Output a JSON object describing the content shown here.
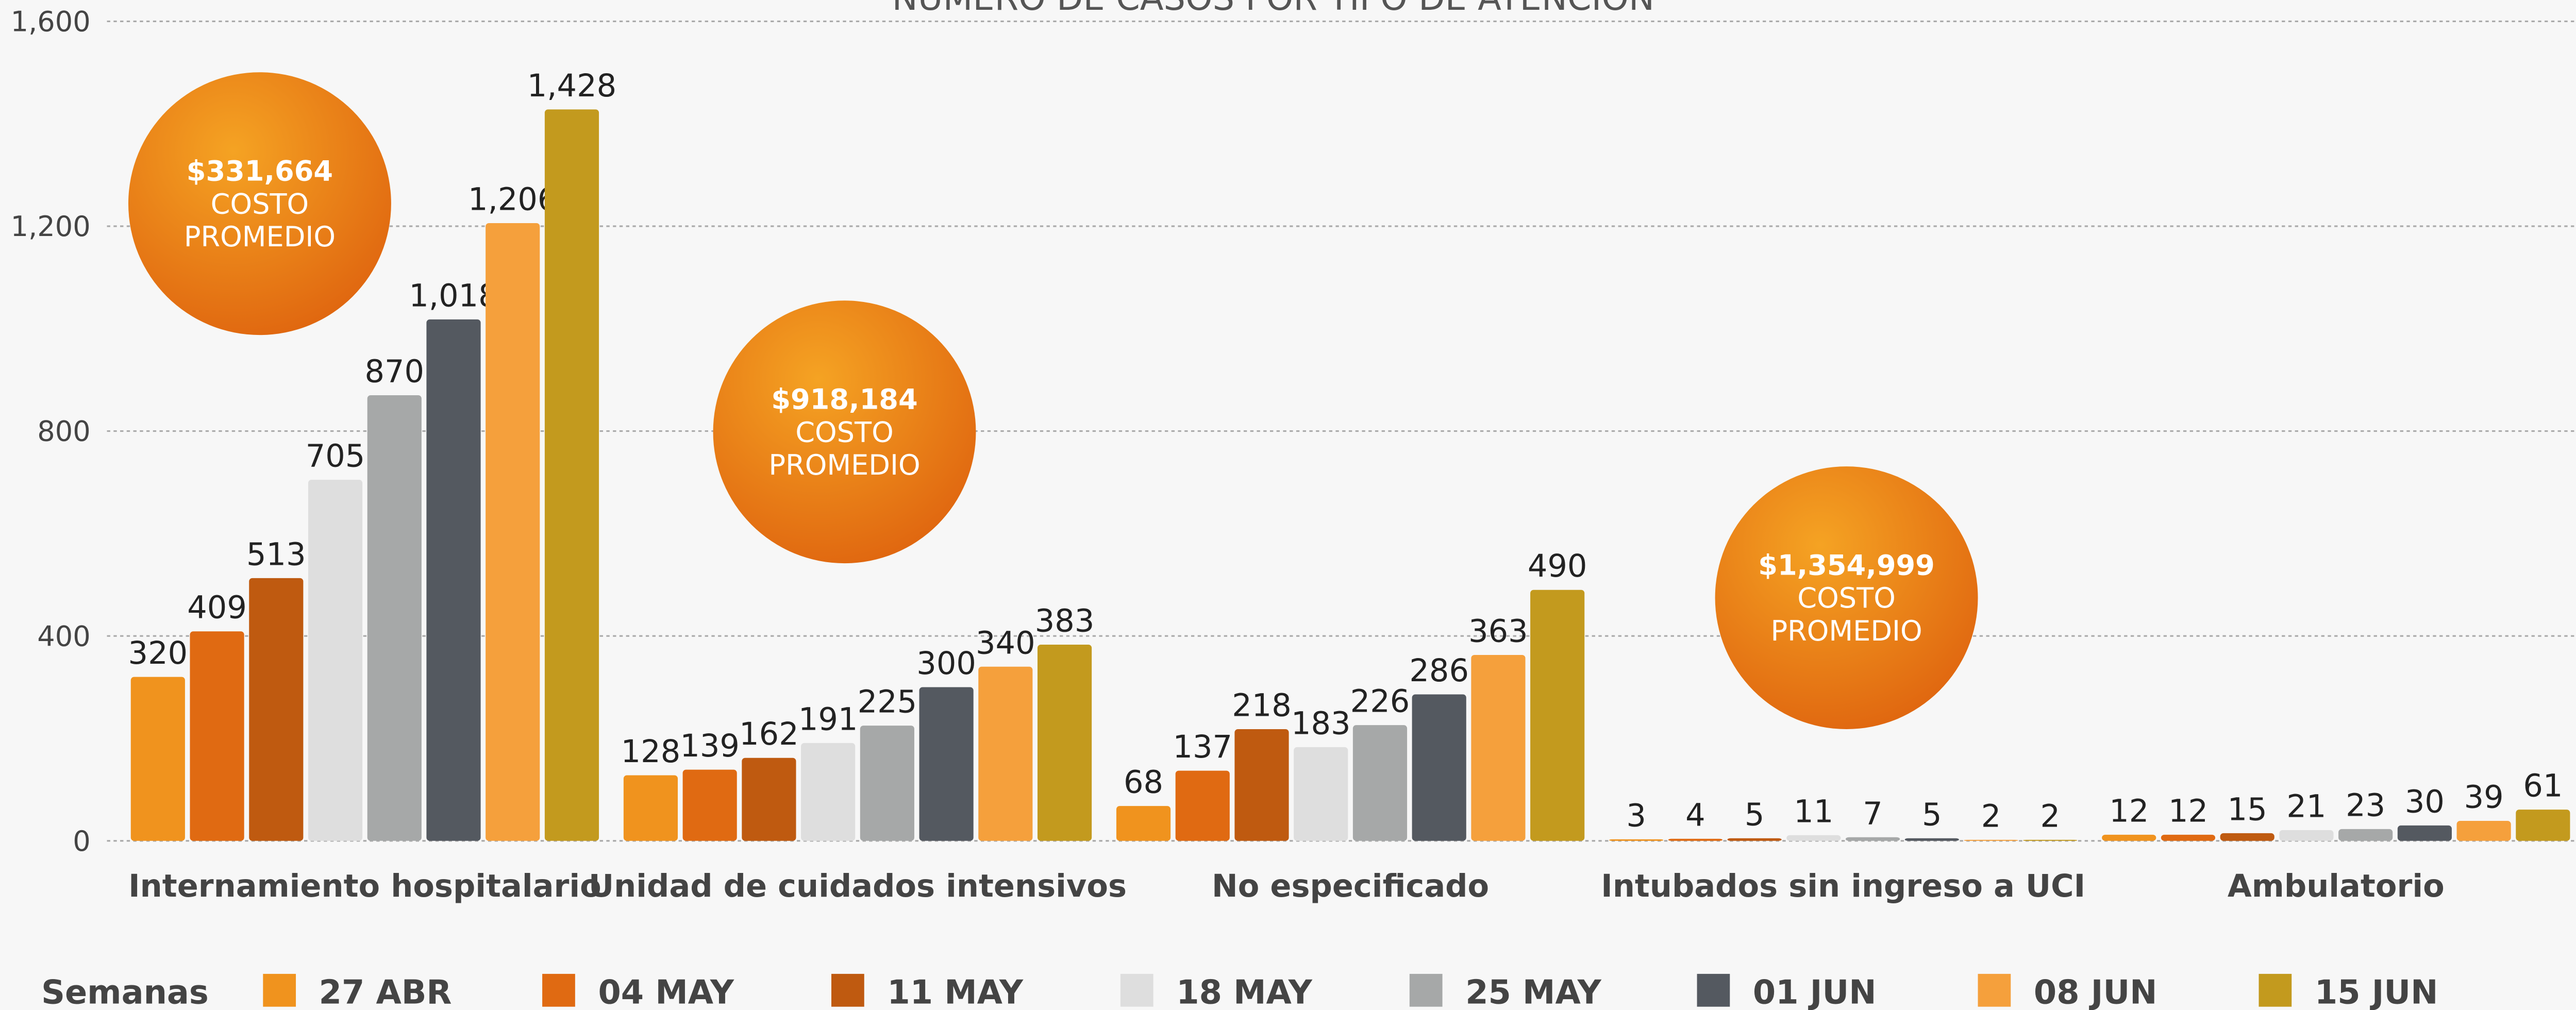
{
  "chart_data": {
    "type": "bar",
    "title": "NÚMERO DE CASOS POR TIPO DE ATENCIÓN",
    "legend_title": "Semanas",
    "categories": [
      "Internamiento hospitalario",
      "Unidad de cuidados intensivos",
      "No especificado",
      "Intubados sin ingreso a UCI",
      "Ambulatorio"
    ],
    "series": [
      {
        "name": "27 ABR",
        "color": "#f0931e",
        "values": [
          320,
          128,
          68,
          3,
          12
        ]
      },
      {
        "name": "04 MAY",
        "color": "#e06a12",
        "values": [
          409,
          139,
          137,
          4,
          12
        ]
      },
      {
        "name": "11 MAY",
        "color": "#bf5a10",
        "values": [
          513,
          162,
          218,
          5,
          15
        ]
      },
      {
        "name": "18 MAY",
        "color": "#dedede",
        "values": [
          705,
          191,
          183,
          11,
          21
        ]
      },
      {
        "name": "25 MAY",
        "color": "#a6a8a8",
        "values": [
          870,
          225,
          226,
          7,
          23
        ]
      },
      {
        "name": "01 JUN",
        "color": "#545960",
        "values": [
          1018,
          300,
          286,
          5,
          30
        ],
        "value_labels": [
          "1,018",
          "300",
          "286",
          "5",
          "30"
        ]
      },
      {
        "name": "08 JUN",
        "color": "#f5a03c",
        "values": [
          1206,
          340,
          363,
          2,
          39
        ],
        "value_labels": [
          "1,206",
          "340",
          "363",
          "2",
          "39"
        ]
      },
      {
        "name": "15 JUN",
        "color": "#c39a1e",
        "values": [
          1428,
          383,
          490,
          2,
          61
        ],
        "value_labels": [
          "1,428",
          "383",
          "490",
          "2",
          "61"
        ]
      }
    ],
    "ylim": [
      0,
      1600
    ],
    "yticks": [
      0,
      400,
      800,
      {
        "value": 1200,
        "label": "1,200"
      },
      {
        "value": 1600,
        "label": "1,600"
      }
    ],
    "grid": true,
    "legend": "bottom",
    "annotations": [
      {
        "lines": [
          "$331,664",
          "COSTO",
          "PROMEDIO"
        ]
      },
      {
        "lines": [
          "$918,184",
          "COSTO",
          "PROMEDIO"
        ]
      },
      {
        "lines": [
          "$1,354,999",
          "COSTO",
          "PROMEDIO"
        ]
      }
    ]
  }
}
